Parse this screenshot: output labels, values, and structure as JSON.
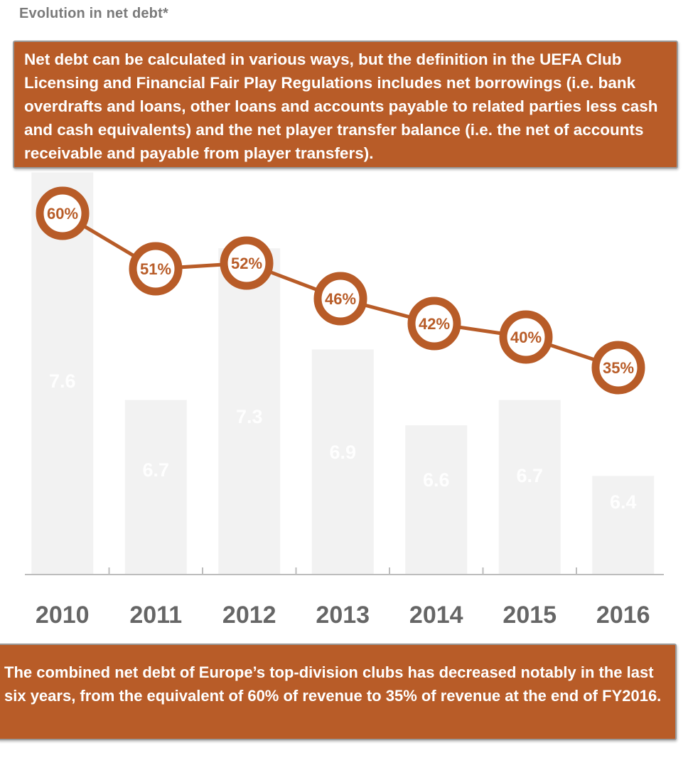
{
  "header": {
    "title": "Evolution in net debt*"
  },
  "note": {
    "text": "Net debt can be calculated in various ways, but the definition in the UEFA Club Licensing and Financial Fair Play Regulations includes net borrowings (i.e. bank overdrafts and loans, other loans and accounts payable to related parties less cash and cash equivalents) and the net player transfer balance (i.e. the net of accounts receivable and payable from player transfers)."
  },
  "summary": {
    "text": "The combined net debt of Europe’s top-division clubs has decreased notably in the last six years, from the equivalent of 60% of revenue to 35% of revenue at the end of FY2016."
  },
  "colors": {
    "accent": "#b85c28",
    "bar": "#f2f2f2",
    "axis": "#bdbdbd",
    "tick_text": "#666666"
  },
  "chart_data": {
    "type": "bar",
    "categories": [
      "2010",
      "2011",
      "2012",
      "2013",
      "2014",
      "2015",
      "2016"
    ],
    "series": [
      {
        "values": [
          7.6,
          6.7,
          7.3,
          6.9,
          6.6,
          6.7,
          6.4
        ]
      },
      {
        "type": "line",
        "values": [
          60,
          51,
          52,
          46,
          42,
          40,
          35
        ],
        "labels": [
          "60%",
          "51%",
          "52%",
          "46%",
          "42%",
          "40%",
          "35%"
        ]
      }
    ],
    "value_labels": [
      "7.6",
      "6.7",
      "7.3",
      "6.9",
      "6.6",
      "6.7",
      "6.4"
    ],
    "title": "Evolution in net debt*",
    "xlabel": "",
    "ylabel": "",
    "grid": false
  }
}
